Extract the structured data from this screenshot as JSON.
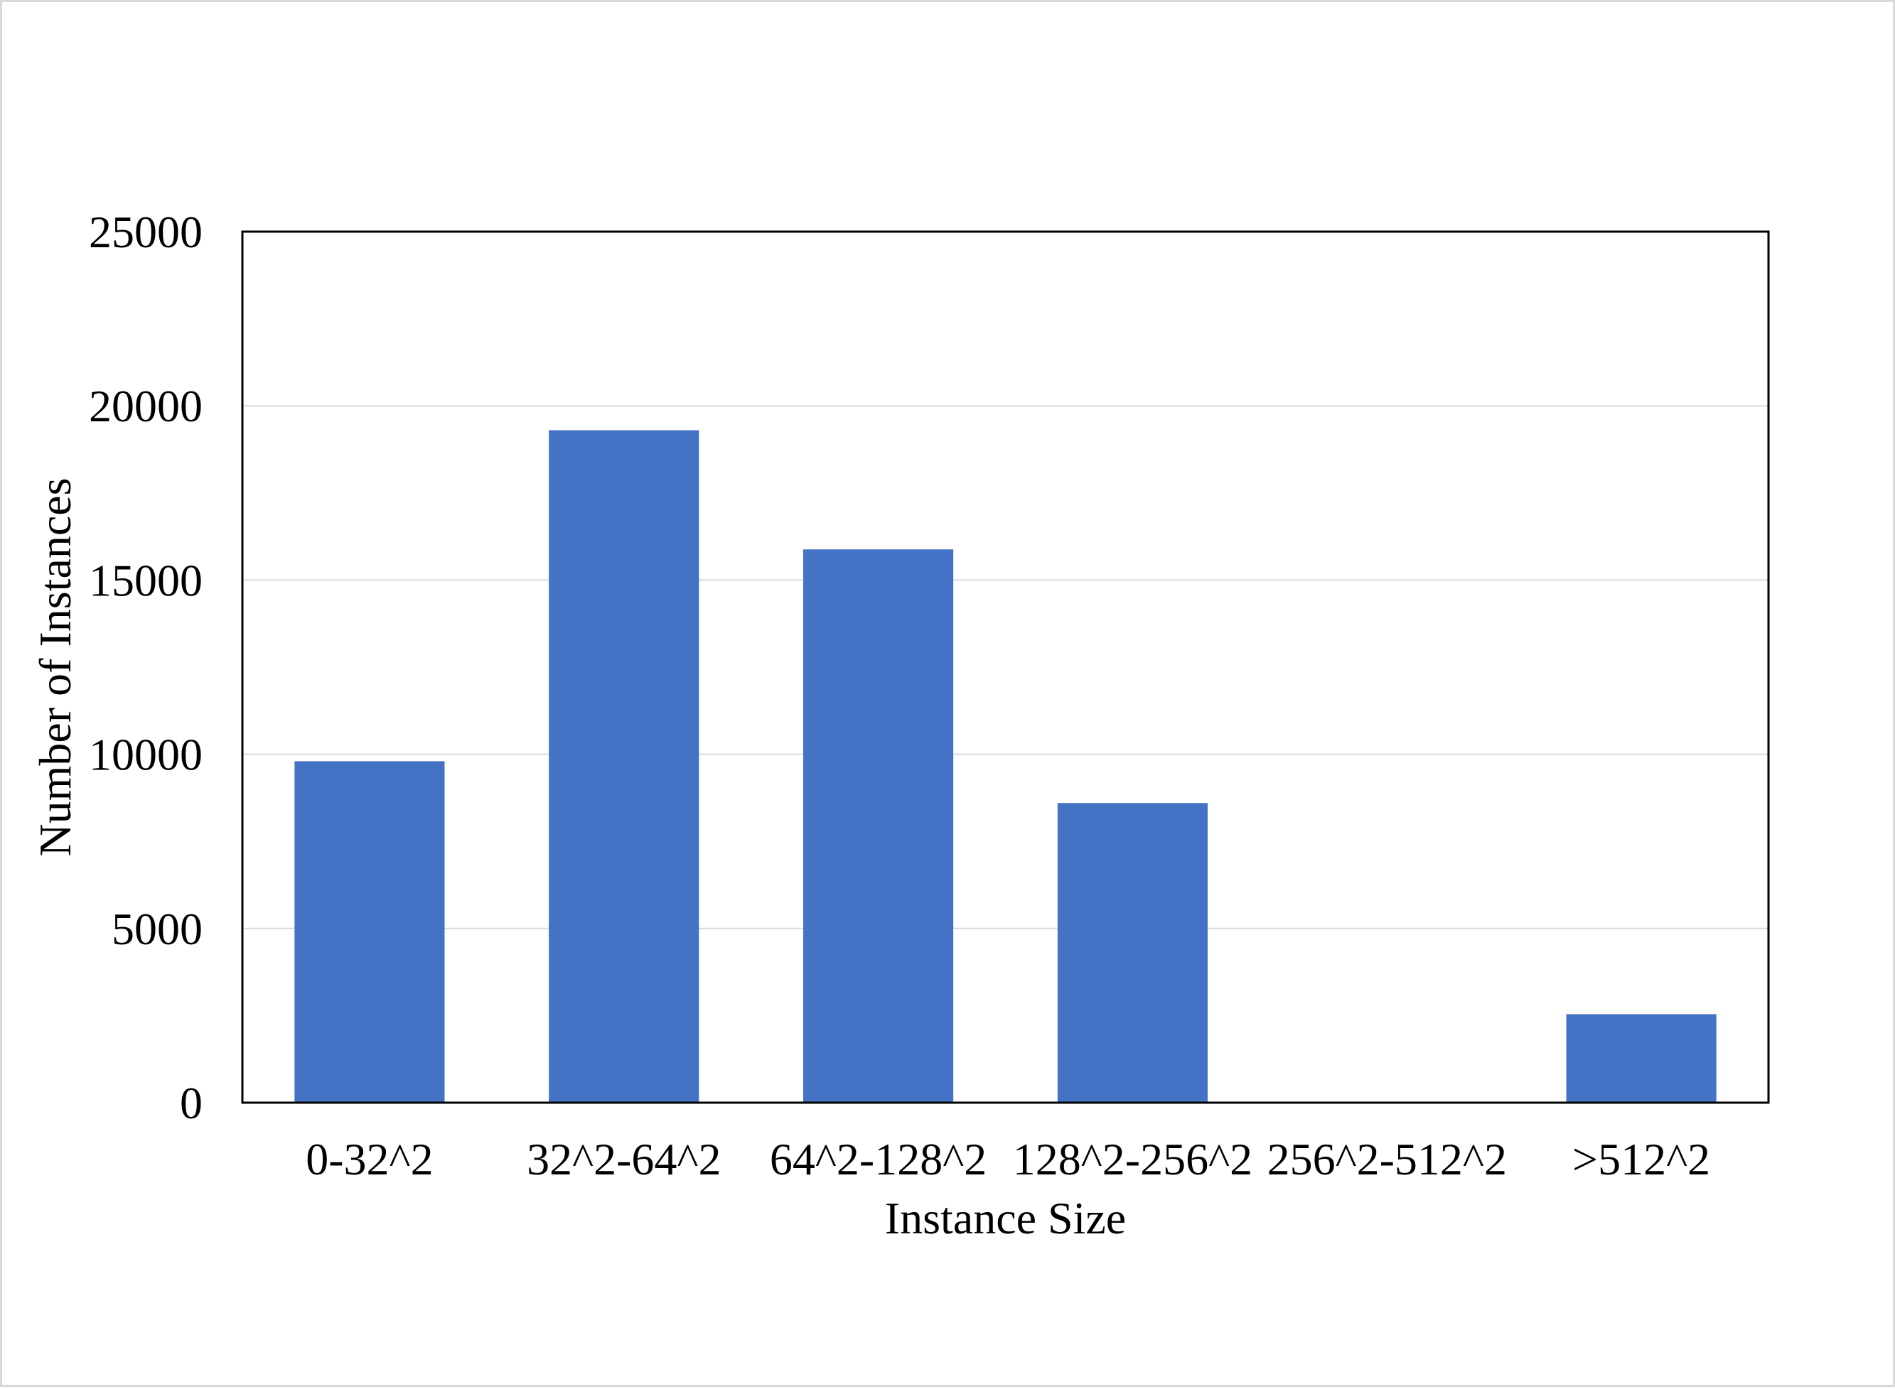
{
  "chart_data": {
    "type": "bar",
    "title": "",
    "xlabel": "Instance Size",
    "ylabel": "Number of Instances",
    "categories": [
      "0-32^2",
      "32^2-64^2",
      "64^2-128^2",
      "128^2-256^2",
      "256^2-512^2",
      ">512^2"
    ],
    "series": [
      {
        "values": [
          9800,
          19300,
          15880,
          8600,
          0,
          2540
        ],
        "color": "#4472C4"
      }
    ],
    "ylim": [
      0,
      25000
    ],
    "yticks": [
      0,
      5000,
      10000,
      15000,
      20000,
      25000
    ],
    "grid": true,
    "legend": "none"
  }
}
